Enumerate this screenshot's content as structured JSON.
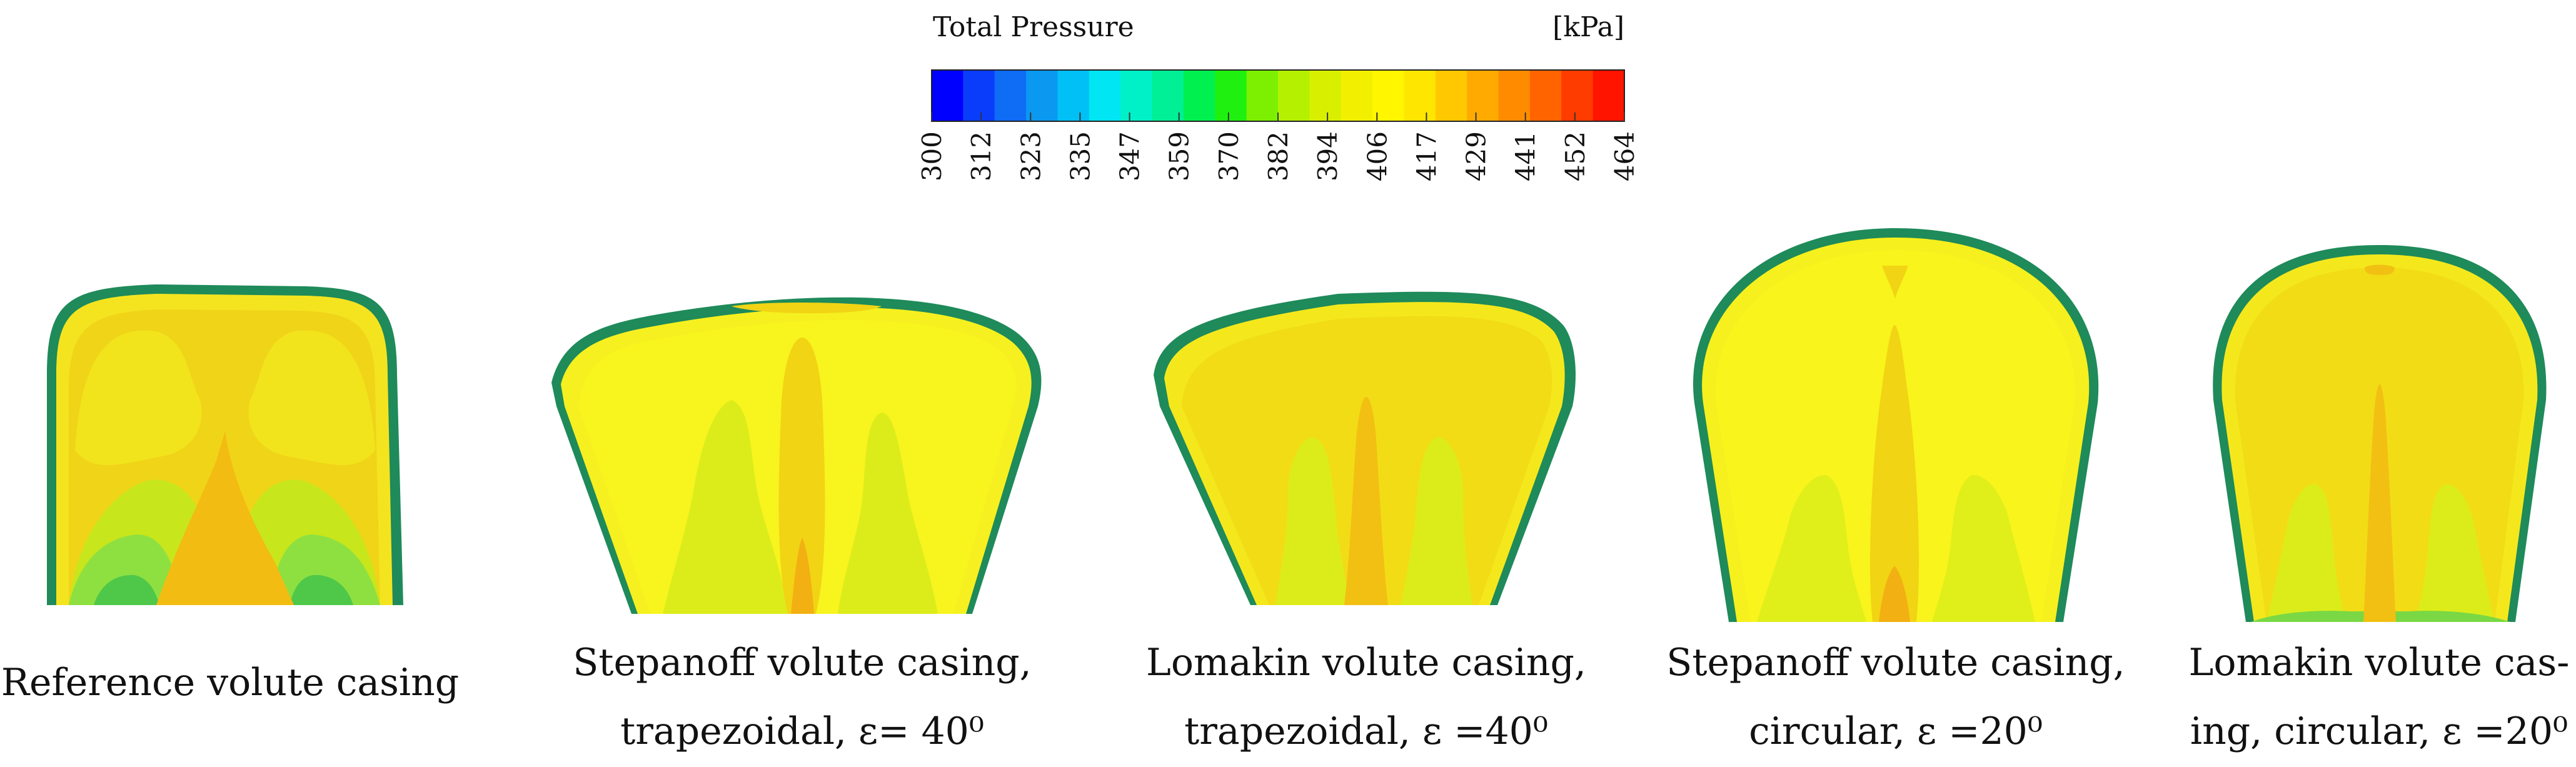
{
  "legend": {
    "title": "Total Pressure",
    "unit": "[kPa]",
    "ticks": [
      "300",
      "312",
      "323",
      "335",
      "347",
      "359",
      "370",
      "382",
      "394",
      "406",
      "417",
      "429",
      "441",
      "452",
      "464"
    ],
    "colors": [
      "#0000ff",
      "#0a3dfa",
      "#0f6cf5",
      "#0a98f0",
      "#00c0f5",
      "#00e6f2",
      "#00f0c8",
      "#00f096",
      "#00f050",
      "#20f010",
      "#7cf000",
      "#b4f000",
      "#d8f000",
      "#f2f000",
      "#fff600",
      "#ffe600",
      "#ffc800",
      "#ffaa00",
      "#ff8c00",
      "#ff6400",
      "#ff3c00",
      "#ff1400"
    ]
  },
  "colors": {
    "yellow": "#f7ef17",
    "amber": "#f3d30e",
    "orange": "#f2b30a",
    "lime": "#d6ec1a",
    "green": "#a6e83a",
    "deep_green": "#4dc83f",
    "outline": "#0f7a5a"
  },
  "captions": [
    {
      "line1": "Reference volute casing",
      "line2": ""
    },
    {
      "line1": "Stepanoff volute casing,",
      "line2": "trapezoidal, ε= 40⁰"
    },
    {
      "line1": "Lomakin volute casing,",
      "line2": "trapezoidal, ε =40⁰"
    },
    {
      "line1": "Stepanoff volute casing,",
      "line2": "circular, ε =20⁰"
    },
    {
      "line1": "Lomakin volute cas-",
      "line2": "ing, circular, ε =20⁰"
    }
  ]
}
